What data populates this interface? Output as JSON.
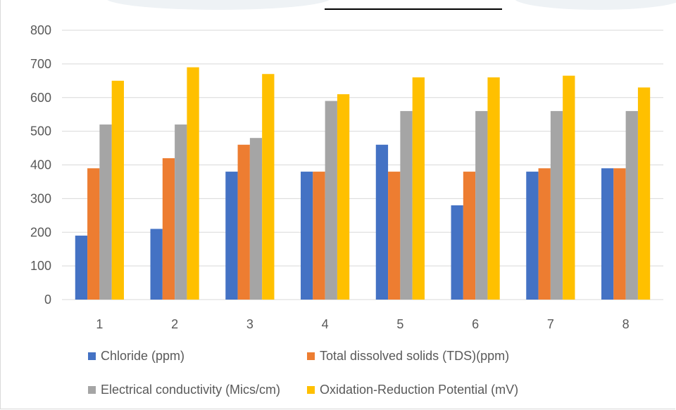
{
  "chart_data": {
    "type": "bar",
    "title": "",
    "xlabel": "",
    "ylabel": "",
    "ylim": [
      0,
      800
    ],
    "yticks": [
      0,
      100,
      200,
      300,
      400,
      500,
      600,
      700,
      800
    ],
    "grid": true,
    "legend_position": "bottom",
    "categories": [
      "1",
      "2",
      "3",
      "4",
      "5",
      "6",
      "7",
      "8"
    ],
    "series": [
      {
        "name": "Chloride (ppm)",
        "color": "#4472c4",
        "values": [
          190,
          210,
          380,
          380,
          460,
          280,
          380,
          390
        ]
      },
      {
        "name": "Total dissolved solids (TDS)(ppm)",
        "color": "#ed7d31",
        "values": [
          390,
          420,
          460,
          380,
          380,
          380,
          390,
          390
        ]
      },
      {
        "name": "Electrical conductivity (Mics/cm)",
        "color": "#a5a5a5",
        "values": [
          520,
          520,
          480,
          590,
          560,
          560,
          560,
          560
        ]
      },
      {
        "name": "Oxidation-Reduction Potential (mV)",
        "color": "#ffc000",
        "values": [
          650,
          690,
          670,
          610,
          660,
          660,
          665,
          630
        ]
      }
    ]
  }
}
